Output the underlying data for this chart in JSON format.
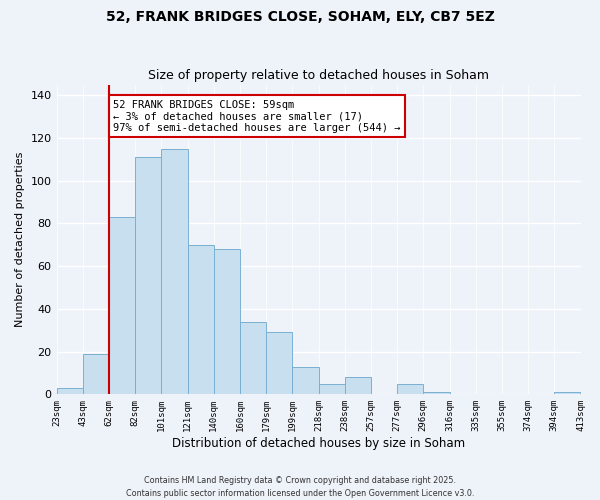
{
  "title": "52, FRANK BRIDGES CLOSE, SOHAM, ELY, CB7 5EZ",
  "subtitle": "Size of property relative to detached houses in Soham",
  "xlabel": "Distribution of detached houses by size in Soham",
  "ylabel": "Number of detached properties",
  "bin_labels": [
    "23sqm",
    "43sqm",
    "62sqm",
    "82sqm",
    "101sqm",
    "121sqm",
    "140sqm",
    "160sqm",
    "179sqm",
    "199sqm",
    "218sqm",
    "238sqm",
    "257sqm",
    "277sqm",
    "296sqm",
    "316sqm",
    "335sqm",
    "355sqm",
    "374sqm",
    "394sqm",
    "413sqm"
  ],
  "bar_values": [
    3,
    19,
    83,
    111,
    115,
    70,
    68,
    34,
    29,
    13,
    5,
    8,
    0,
    5,
    1,
    0,
    0,
    0,
    0,
    1
  ],
  "bar_color": "#c8dff0",
  "bar_edge_color": "#7ab0d4",
  "vline_x_idx": 2,
  "vline_color": "#cc0000",
  "annotation_text": "52 FRANK BRIDGES CLOSE: 59sqm\n← 3% of detached houses are smaller (17)\n97% of semi-detached houses are larger (544) →",
  "annotation_box_color": "#ffffff",
  "annotation_box_edge": "#cc0000",
  "ylim": [
    0,
    145
  ],
  "yticks": [
    0,
    20,
    40,
    60,
    80,
    100,
    120,
    140
  ],
  "footer_line1": "Contains HM Land Registry data © Crown copyright and database right 2025.",
  "footer_line2": "Contains public sector information licensed under the Open Government Licence v3.0.",
  "bg_color": "#eef2f9"
}
